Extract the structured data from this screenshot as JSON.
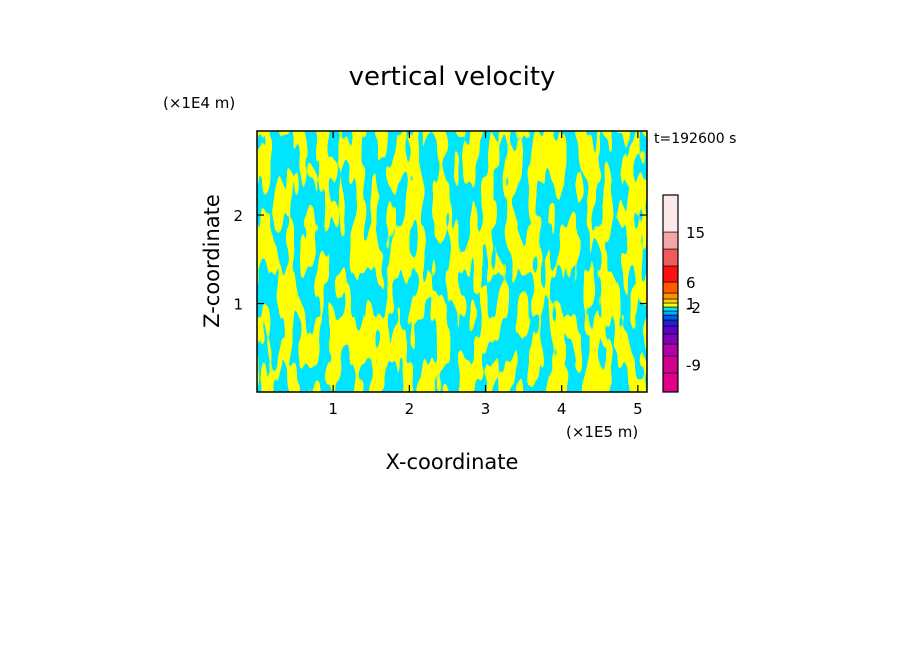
{
  "chart_data": {
    "type": "heatmap",
    "title": "vertical velocity",
    "xlabel": "X-coordinate",
    "ylabel": "Z-coordinate",
    "x_unit": "(×1E5 m)",
    "y_unit": "(×1E4 m)",
    "time_label": "t=192600 s",
    "xlim": [
      0,
      5.12
    ],
    "ylim": [
      0,
      2.95
    ],
    "x_ticks": [
      1,
      2,
      3,
      4,
      5
    ],
    "y_ticks": [
      1,
      2
    ],
    "x_tick_labels": [
      "1",
      "2",
      "3",
      "4",
      "5"
    ],
    "y_tick_labels": [
      "1",
      "2"
    ],
    "field_colors": {
      "positive": "#ffff00",
      "negative": "#00e5ff"
    },
    "colorbar": {
      "levels": [
        {
          "color": "#e0008a"
        },
        {
          "color": "#d10090"
        },
        {
          "color": "#b000a8"
        },
        {
          "color": "#8000b8"
        },
        {
          "color": "#5a00c8"
        },
        {
          "color": "#2020d0"
        },
        {
          "color": "#0058f0"
        },
        {
          "color": "#00b0ff"
        },
        {
          "color": "#00e5ff"
        },
        {
          "color": "#ffff00"
        },
        {
          "color": "#ffd000"
        },
        {
          "color": "#ff9000"
        },
        {
          "color": "#ff5a00"
        },
        {
          "color": "#ff1010"
        },
        {
          "color": "#f05a5a"
        },
        {
          "color": "#f3a6a6"
        },
        {
          "color": "#fce8e8"
        }
      ],
      "tick_labels": [
        "-9",
        "-2",
        "1",
        "6",
        "15"
      ]
    }
  }
}
